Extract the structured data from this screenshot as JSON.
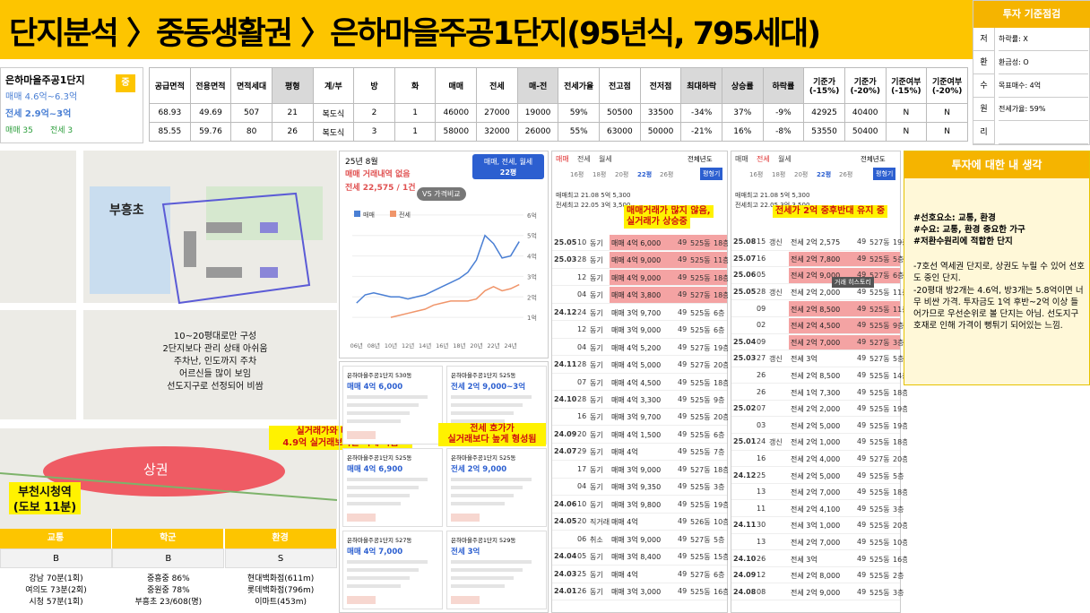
{
  "header": {
    "title": "단지분석 〉중동생활권 〉은하마을주공1단지(95년식, 795세대)"
  },
  "criteria": {
    "title": "투자 기준점검",
    "rows": [
      {
        "key": "저",
        "text": "하락률: X"
      },
      {
        "key": "환",
        "text": "환금성: O"
      },
      {
        "key": "수",
        "text": "목표매수: 4억"
      },
      {
        "key": "원",
        "text": "전세가율: 59%"
      },
      {
        "key": "리"
      }
    ]
  },
  "summary": {
    "name": "은하마을주공1단지",
    "sale": "매매 4.6억~6.3억",
    "jeonse": "전세 2.9억~3억",
    "count_sale": "매매 35",
    "count_jeonse": "전세 3",
    "badge": "중"
  },
  "table": {
    "headers": [
      "공급면적",
      "전용면적",
      "면적세대",
      "평형",
      "계/부",
      "방",
      "화",
      "매매",
      "전세",
      "매-전",
      "전세가율",
      "전고점",
      "전저점",
      "최대하락",
      "상승률",
      "하락률",
      "기준가(-15%)",
      "기준가(-20%)",
      "기준여부(-15%)",
      "기준여부(-20%)"
    ],
    "rows": [
      [
        "68.93",
        "49.69",
        "507",
        "21",
        "복도식",
        "2",
        "1",
        "46000",
        "27000",
        "19000",
        "59%",
        "50500",
        "33500",
        "-34%",
        "37%",
        "-9%",
        "42925",
        "40400",
        "N",
        "N"
      ],
      [
        "85.55",
        "59.76",
        "80",
        "26",
        "복도식",
        "3",
        "1",
        "58000",
        "32000",
        "26000",
        "55%",
        "63000",
        "50000",
        "-21%",
        "16%",
        "-8%",
        "53550",
        "50400",
        "N",
        "N"
      ]
    ]
  },
  "map": {
    "school": "부흥초",
    "notes": [
      "10~20평대로만 구성",
      "2단지보다 관리 상태 아쉬움",
      "주차난, 인도까지 주차",
      "어르신들 많이 보임",
      "선도지구로 선정되어 비쌈"
    ],
    "commercial": "상권",
    "station": [
      "부천시청역",
      "(도보 11분)"
    ],
    "callout": [
      "실거래가와 비슷한 호가",
      "4.9억 실거래보다는 싸게 나옴"
    ]
  },
  "scores": {
    "headers": [
      "교통",
      "학군",
      "환경"
    ],
    "grades": [
      "B",
      "B",
      "S"
    ],
    "details": [
      [
        "강남 70분(1회)",
        "여의도 73분(2회)",
        "시청 57분(1회)"
      ],
      [
        "중흥중 86%",
        "중원중 78%",
        "부흥초 23/608(명)"
      ],
      [
        "현대백화점(611m)",
        "롯데백화점(796m)",
        "이마트(453m)"
      ]
    ]
  },
  "chart_data": {
    "type": "line",
    "title": "25년 8월",
    "subtitle": [
      "매매 거래내역 없음",
      "전세 22,575 / 1건"
    ],
    "compare": "VS 가격비교",
    "filter": [
      "매매, 전세, 월세",
      "22평"
    ],
    "categories": [
      "06년",
      null,
      "08년",
      null,
      "10년",
      null,
      "12년",
      null,
      "14년",
      null,
      "16년",
      null,
      "18년",
      null,
      "20년",
      null,
      "22년",
      null,
      "24년",
      null
    ],
    "series": [
      {
        "name": "매매",
        "color": "#4a7fd4",
        "values": [
          1.7,
          2.1,
          2.2,
          2.1,
          2.0,
          2.0,
          1.9,
          2.0,
          2.1,
          2.3,
          2.5,
          2.7,
          2.9,
          3.2,
          3.8,
          5.0,
          4.6,
          3.9,
          4.0,
          4.7
        ]
      },
      {
        "name": "전세",
        "color": "#f0956a",
        "values": [
          null,
          null,
          null,
          null,
          1.0,
          1.1,
          1.2,
          1.3,
          1.4,
          1.6,
          1.7,
          1.8,
          1.8,
          1.8,
          1.9,
          2.3,
          2.5,
          2.3,
          2.4,
          2.6
        ]
      }
    ],
    "ylim": [
      0,
      6.3
    ],
    "yticks": [
      {
        "value": 1,
        "label": "1억"
      },
      {
        "value": 2,
        "label": "2억"
      },
      {
        "value": 3,
        "label": "3억"
      },
      {
        "value": 4,
        "label": "4억"
      },
      {
        "value": 5,
        "label": "5억"
      },
      {
        "value": 6,
        "label": "6억"
      }
    ],
    "grid": true
  },
  "listings": {
    "callout": [
      "전세 호가가",
      "실거래보다 높게 형성됨"
    ],
    "cards": [
      {
        "title": "은하마을주공1단지 530동",
        "price": "매매 4억 6,000"
      },
      {
        "title": "은하마을주공1단지 525동",
        "price": "전세 2억 9,000~3억"
      },
      {
        "title": "은하마을주공1단지 525동",
        "price": "매매 4억 6,900"
      },
      {
        "title": "은하마을주공1단지 525동",
        "price": "전세 2억 9,000"
      },
      {
        "title": "은하마을주공1단지 527동",
        "price": "매매 4억 7,000"
      },
      {
        "title": "은하마을주공1단지 529동",
        "price": "전세 3억"
      }
    ]
  },
  "sales": {
    "tabs": [
      "매매",
      "전세",
      "월세"
    ],
    "year": "전체년도",
    "sizes": [
      "16평",
      "18평",
      "20평",
      "22평",
      "26평"
    ],
    "button": "평형기",
    "highs": [
      "매매최고 21.08 5억 5,300",
      "전세최고 22.05 3억 3,500"
    ],
    "callout": [
      "매매거래가 많지 않음,",
      "실거래가 상승중"
    ],
    "rows": [
      [
        "25.05",
        "10",
        "동기",
        "매매 4억 6,000",
        "49",
        "525동",
        "18층",
        true
      ],
      [
        "25.03",
        "28",
        "동기",
        "매매 4억 9,000",
        "49",
        "525동",
        "11층",
        true
      ],
      [
        null,
        "12",
        "동기",
        "매매 4억 9,000",
        "49",
        "525동",
        "18층",
        true
      ],
      [
        null,
        "04",
        "동기",
        "매매 4억 3,800",
        "49",
        "527동",
        "18층",
        true
      ],
      [
        "24.12",
        "24",
        "동기",
        "매매 3억 9,700",
        "49",
        "525동",
        "6층",
        false
      ],
      [
        null,
        "12",
        "동기",
        "매매 3억 9,000",
        "49",
        "525동",
        "6층",
        false
      ],
      [
        null,
        "04",
        "동기",
        "매매 4억 5,200",
        "49",
        "527동",
        "19층",
        false
      ],
      [
        "24.11",
        "28",
        "동기",
        "매매 4억 5,000",
        "49",
        "527동",
        "20층",
        false
      ],
      [
        null,
        "07",
        "동기",
        "매매 4억 4,500",
        "49",
        "525동",
        "18층",
        false
      ],
      [
        "24.10",
        "28",
        "동기",
        "매매 4억 3,300",
        "49",
        "525동",
        "9층",
        false
      ],
      [
        null,
        "16",
        "동기",
        "매매 3억 9,700",
        "49",
        "525동",
        "20층",
        false
      ],
      [
        "24.09",
        "20",
        "동기",
        "매매 4억 1,500",
        "49",
        "525동",
        "6층",
        false
      ],
      [
        "24.07",
        "29",
        "동기",
        "매매 4억",
        "49",
        "525동",
        "7층",
        false
      ],
      [
        null,
        "17",
        "동기",
        "매매 3억 9,000",
        "49",
        "527동",
        "18층",
        false
      ],
      [
        null,
        "04",
        "동기",
        "매매 3억 9,350",
        "49",
        "525동",
        "3층",
        false
      ],
      [
        "24.06",
        "10",
        "동기",
        "매매 3억 9,800",
        "49",
        "525동",
        "19층",
        false
      ],
      [
        "24.05",
        "20",
        "직거래",
        "매매 4억",
        "49",
        "526동",
        "10층",
        false
      ],
      [
        null,
        "06",
        "취소",
        "매매 3억 9,000",
        "49",
        "527동",
        "5층",
        false
      ],
      [
        "24.04",
        "05",
        "동기",
        "매매 3억 8,400",
        "49",
        "525동",
        "15층",
        false
      ],
      [
        "24.03",
        "25",
        "동기",
        "매매 4억",
        "49",
        "527동",
        "6층",
        false
      ],
      [
        "24.01",
        "26",
        "동기",
        "매매 3억 3,000",
        "49",
        "525동",
        "16층",
        false
      ]
    ]
  },
  "jeonse": {
    "tabs": [
      "매매",
      "전세",
      "월세"
    ],
    "year": "전체년도",
    "sizes": [
      "16평",
      "18평",
      "20평",
      "22평",
      "26평"
    ],
    "button": "평형기",
    "highs": [
      "매매최고 21.08 5억 5,300",
      "전세최고 22.05 3억 3,500"
    ],
    "callout": [
      "전세가 2억 중후반대 유지 중"
    ],
    "tooltip": "거래 히스토리",
    "rows": [
      [
        "25.08",
        "15",
        "갱신",
        "전세 2억 2,575",
        "49",
        "527동",
        "19층",
        false
      ],
      [
        "25.07",
        "16",
        null,
        "전세 2억 7,800",
        "49",
        "525동",
        "5층",
        true
      ],
      [
        "25.06",
        "05",
        null,
        "전세 2억 9,000",
        "49",
        "527동",
        "6층",
        true
      ],
      [
        "25.05",
        "28",
        "갱신",
        "전세 2억 2,000",
        "49",
        "525동",
        "11층",
        false
      ],
      [
        null,
        "09",
        null,
        "전세 2억 8,500",
        "49",
        "525동",
        "11층",
        true
      ],
      [
        null,
        "02",
        null,
        "전세 2억 4,500",
        "49",
        "525동",
        "9층",
        true
      ],
      [
        "25.04",
        "09",
        null,
        "전세 2억 7,000",
        "49",
        "527동",
        "3층",
        true
      ],
      [
        "25.03",
        "27",
        "갱신",
        "전세 3억",
        "49",
        "527동",
        "5층",
        false
      ],
      [
        null,
        "26",
        null,
        "전세 2억 8,500",
        "49",
        "525동",
        "14층",
        false
      ],
      [
        null,
        "26",
        null,
        "전세 1억 7,300",
        "49",
        "525동",
        "18층",
        false
      ],
      [
        "25.02",
        "07",
        null,
        "전세 2억 2,000",
        "49",
        "525동",
        "19층",
        false
      ],
      [
        null,
        "03",
        null,
        "전세 2억 5,000",
        "49",
        "525동",
        "19층",
        false
      ],
      [
        "25.01",
        "24",
        "갱신",
        "전세 2억 1,000",
        "49",
        "525동",
        "18층",
        false
      ],
      [
        null,
        "16",
        null,
        "전세 2억 4,000",
        "49",
        "527동",
        "20층",
        false
      ],
      [
        "24.12",
        "25",
        null,
        "전세 2억 5,000",
        "49",
        "525동",
        "5층",
        false
      ],
      [
        null,
        "13",
        null,
        "전세 2억 7,000",
        "49",
        "525동",
        "18층",
        false
      ],
      [
        null,
        "11",
        null,
        "전세 2억 4,100",
        "49",
        "525동",
        "3층",
        false
      ],
      [
        "24.11",
        "30",
        null,
        "전세 3억 1,000",
        "49",
        "525동",
        "20층",
        false
      ],
      [
        null,
        "13",
        null,
        "전세 2억 7,000",
        "49",
        "525동",
        "10층",
        false
      ],
      [
        "24.10",
        "26",
        null,
        "전세 3억",
        "49",
        "525동",
        "16층",
        false
      ],
      [
        "24.09",
        "12",
        null,
        "전세 2억 8,000",
        "49",
        "525동",
        "2층",
        false
      ],
      [
        "24.08",
        "08",
        null,
        "전세 2억 9,000",
        "49",
        "525동",
        "3층",
        false
      ]
    ]
  },
  "memo": {
    "title": "투자에 대한 내 생각",
    "tags": [
      "#선호요소: 교통, 환경",
      "#수요: 교통, 환경 중요한 가구",
      "#저환수원리에 적합한 단지"
    ],
    "paragraphs": [
      "-7호선 역세권 단지로, 상권도 누릴 수 있어 선호도 중인 단지.",
      "-20평대 방2개는 4.6억, 방3개는 5.8억이면 너무 비싼 가격. 투자금도 1억 후반~2억 이상 들어가므로 우선순위로 볼 단지는 아님. 선도지구 호재로 인해 가격이 뻥튀기 되어있는 느낌."
    ]
  }
}
